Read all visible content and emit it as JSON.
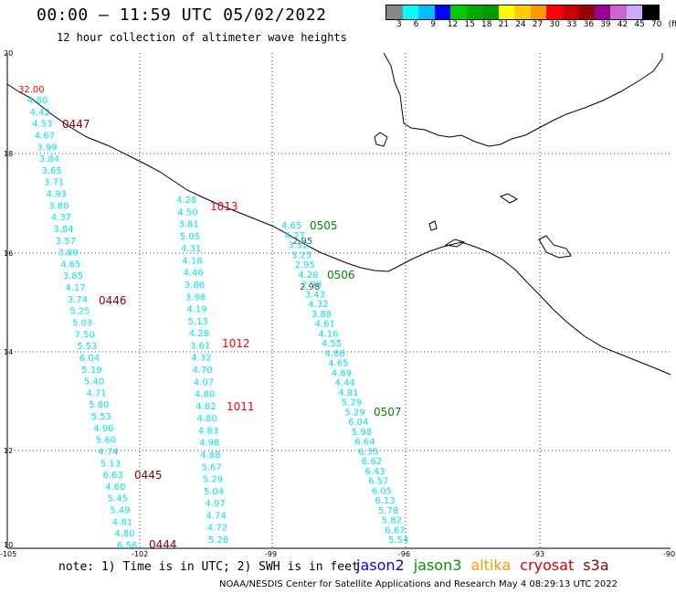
{
  "header": {
    "title": "00:00 – 11:59 UTC 05/02/2022",
    "subtitle": "12 hour collection of altimeter wave heights"
  },
  "legend": {
    "colors": [
      "#888888",
      "#00ffff",
      "#00bfff",
      "#0000ff",
      "#00cc00",
      "#00aa00",
      "#009900",
      "#ffff00",
      "#ffcc00",
      "#ff9900",
      "#ff0000",
      "#cc0000",
      "#990000",
      "#990099",
      "#cc66cc",
      "#ccaaff",
      "#000000"
    ],
    "labels": [
      "3",
      "6",
      "9",
      "12",
      "15",
      "18",
      "21",
      "24",
      "27",
      "30",
      "33",
      "36",
      "39",
      "42",
      "45",
      "70",
      "(ft)"
    ]
  },
  "axes": {
    "lat_labels": [
      "20",
      "18",
      "16",
      "14",
      "12",
      "10"
    ],
    "lon_labels": [
      "-105",
      "-102",
      "-99",
      "-96",
      "-93",
      "-90"
    ]
  },
  "tracks": [
    {
      "id": "track-a",
      "color": "#00e5ee",
      "values": [
        "4.80",
        "4.42",
        "4.53",
        "4.67",
        "3.99",
        "3.84",
        "3.65",
        "3.71",
        "4.93",
        "3.80",
        "4.37",
        "3.84",
        "3.57",
        "3.89",
        "4.65",
        "3.85",
        "4.17",
        "3.74",
        "5.25",
        "5.03",
        "7.50",
        "5.53",
        "6.04",
        "5.19",
        "5.40",
        "4.71",
        "5.80",
        "5.53",
        "4.96",
        "5.60",
        "4.74",
        "5.13",
        "6.63",
        "4.60",
        "5.45",
        "5.49",
        "4.81",
        "4.80",
        "6.56"
      ]
    },
    {
      "id": "track-b",
      "color": "#00e5ee",
      "values": [
        "4.28",
        "4.50",
        "3.81",
        "5.05",
        "4.31",
        "4.18",
        "4.46",
        "3.86",
        "3.98",
        "4.19",
        "5.13",
        "4.28",
        "3.61",
        "4.32",
        "4.70",
        "4.07",
        "4.80",
        "4.82",
        "4.80",
        "4.83",
        "4.98",
        "4.88",
        "5.67",
        "5.29",
        "5.04",
        "4.97",
        "4.74",
        "4.72",
        "5.28"
      ]
    },
    {
      "id": "track-c",
      "color": "#00e5ee",
      "values": [
        "4.65",
        "4.27",
        "3.52",
        "3.23",
        "2.95",
        "4.28",
        "2.98",
        "3.43",
        "4.32",
        "3.88",
        "4.61",
        "4.16",
        "4.55",
        "4.86",
        "4.65",
        "4.89",
        "4.44",
        "4.81",
        "5.29",
        "5.29",
        "6.04",
        "5.98",
        "6.64",
        "6.35",
        "6.62",
        "6.43",
        "6.57",
        "6.05",
        "6.13",
        "5.78",
        "5.82",
        "6.67",
        "5.54"
      ]
    }
  ],
  "special_values": {
    "top_red": "32.00",
    "gray_a": "2.95",
    "gray_b": "2.98"
  },
  "stations": [
    {
      "id": "0447",
      "color": "#8b0000"
    },
    {
      "id": "1013",
      "color": "#ff0000"
    },
    {
      "id": "0505",
      "color": "#008800"
    },
    {
      "id": "0506",
      "color": "#008800"
    },
    {
      "id": "0446",
      "color": "#8b0000"
    },
    {
      "id": "1012",
      "color": "#ff0000"
    },
    {
      "id": "1011",
      "color": "#ff0000"
    },
    {
      "id": "0507",
      "color": "#008800"
    },
    {
      "id": "0445",
      "color": "#8b0000"
    },
    {
      "id": "0444",
      "color": "#8b0000"
    }
  ],
  "footer": {
    "note": "note: 1) Time is in UTC; 2) SWH is in feet",
    "satellites": [
      {
        "name": "jason2",
        "color": "#0000ff"
      },
      {
        "name": "jason3",
        "color": "#009900"
      },
      {
        "name": "altika",
        "color": "#ff9900"
      },
      {
        "name": "cryosat",
        "color": "#dd0000"
      },
      {
        "name": "s3a",
        "color": "#8b0000"
      }
    ],
    "credit": "NOAA/NESDIS Center for Satellite Applications and Research   May  4 08:29:13 UTC 2022"
  }
}
